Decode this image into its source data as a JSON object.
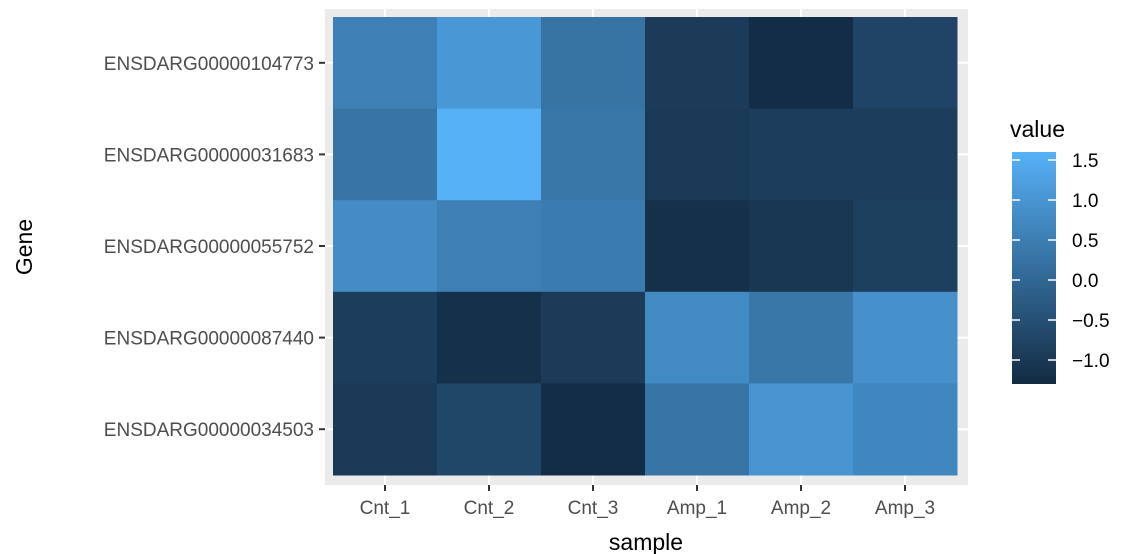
{
  "chart_data": {
    "type": "heatmap",
    "title": "",
    "xlabel": "sample",
    "ylabel": "Gene",
    "x_categories": [
      "Cnt_1",
      "Cnt_2",
      "Cnt_3",
      "Amp_1",
      "Amp_2",
      "Amp_3"
    ],
    "y_categories": [
      "ENSDARG00000104773",
      "ENSDARG00000031683",
      "ENSDARG00000055752",
      "ENSDARG00000087440",
      "ENSDARG00000034503"
    ],
    "values": [
      [
        0.55,
        1.05,
        0.25,
        -0.95,
        -1.25,
        -0.75
      ],
      [
        0.3,
        1.6,
        0.35,
        -1.0,
        -0.9,
        -0.9
      ],
      [
        0.8,
        0.55,
        0.45,
        -1.2,
        -1.05,
        -0.85
      ],
      [
        -0.9,
        -1.2,
        -0.95,
        0.75,
        0.35,
        0.9
      ],
      [
        -1.0,
        -0.7,
        -1.25,
        0.3,
        1.0,
        0.7
      ]
    ],
    "legend": {
      "title": "value",
      "ticks": [
        1.5,
        1.0,
        0.5,
        0.0,
        -0.5,
        -1.0
      ],
      "tick_labels": [
        "1.5",
        "1.0",
        "0.5",
        "0.0",
        "−0.5",
        "−1.0"
      ],
      "range": [
        -1.3,
        1.6
      ],
      "low_color": "#132b43",
      "high_color": "#56b1f7",
      "placement": "right"
    },
    "panel_background": "#ebebeb",
    "grid": true
  }
}
